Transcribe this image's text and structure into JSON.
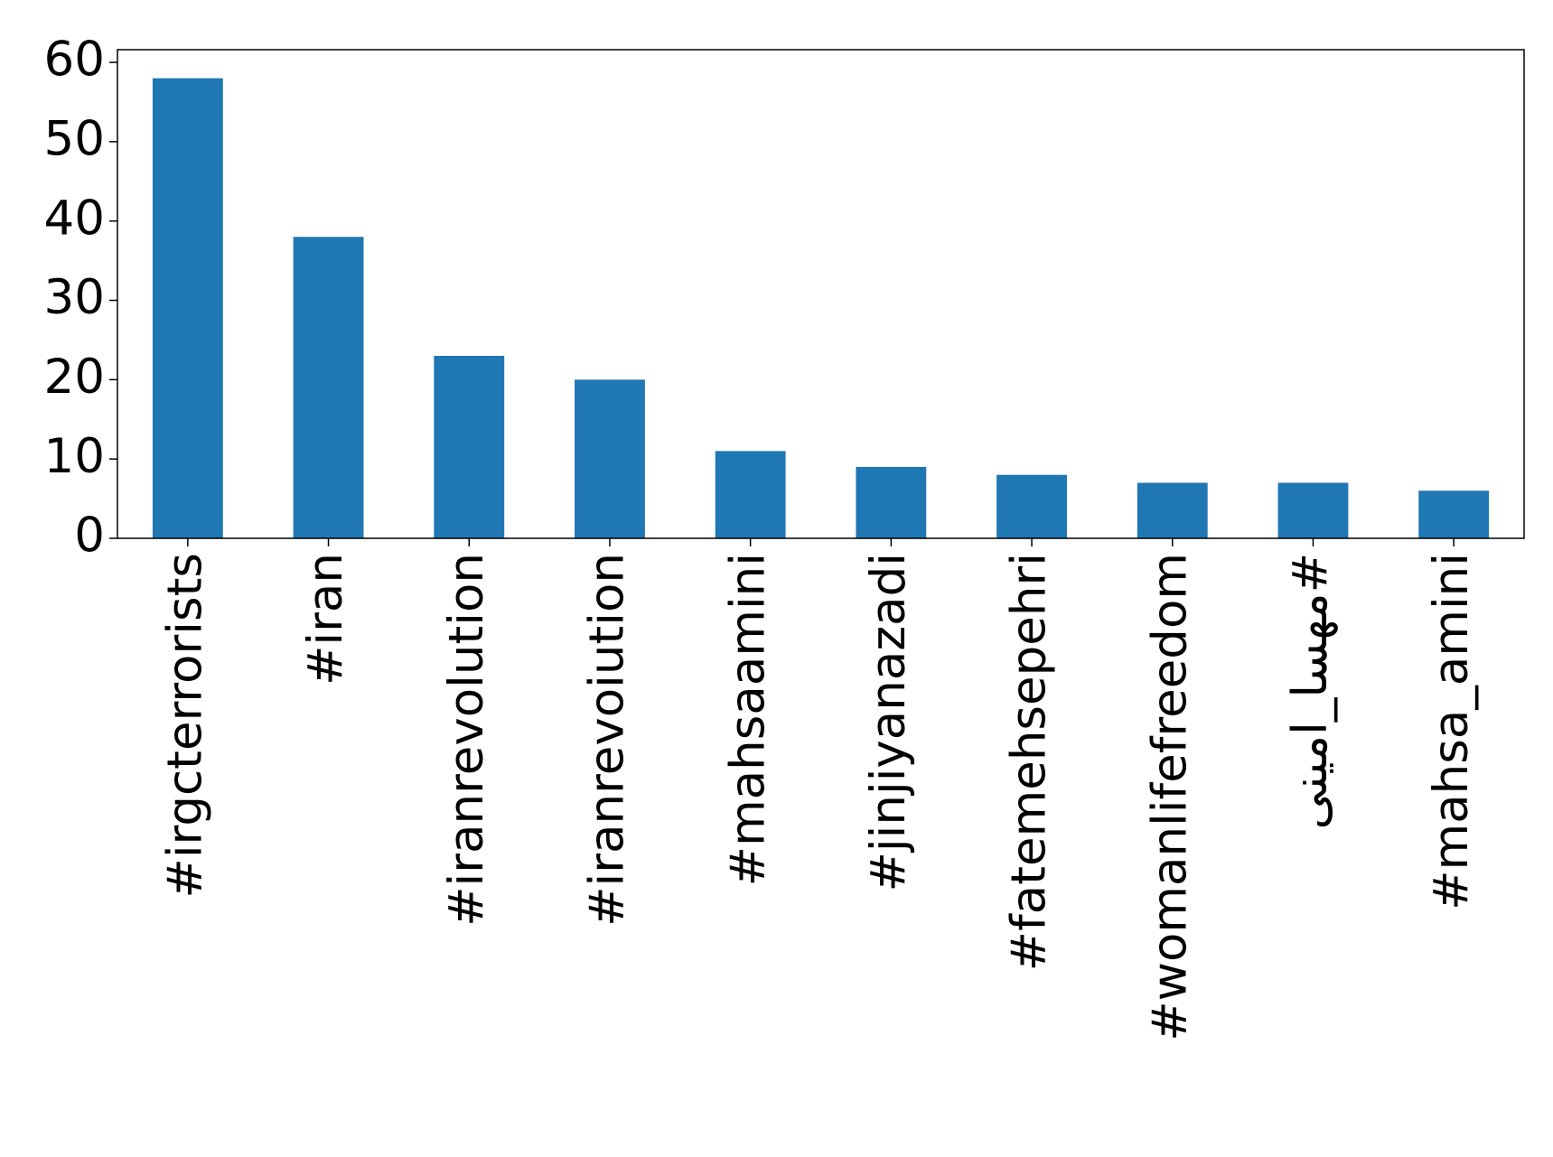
{
  "chart_data": {
    "type": "bar",
    "categories": [
      "#irgcterrorists",
      "#iran",
      "#iranrevolution",
      "#iranrevoiution",
      "#mahsaamini",
      "#jinjiyanazadi",
      "#fatemehsepehri",
      "#womanlifefreedom",
      "#مهسا_امینی",
      "#mahsa_amini"
    ],
    "values": [
      58,
      38,
      23,
      20,
      11,
      9,
      8,
      7,
      7,
      6
    ],
    "color": "#1f77b4",
    "ylim": [
      0,
      61.6
    ],
    "yticks": [
      0,
      10,
      20,
      30,
      40,
      50,
      60
    ]
  }
}
